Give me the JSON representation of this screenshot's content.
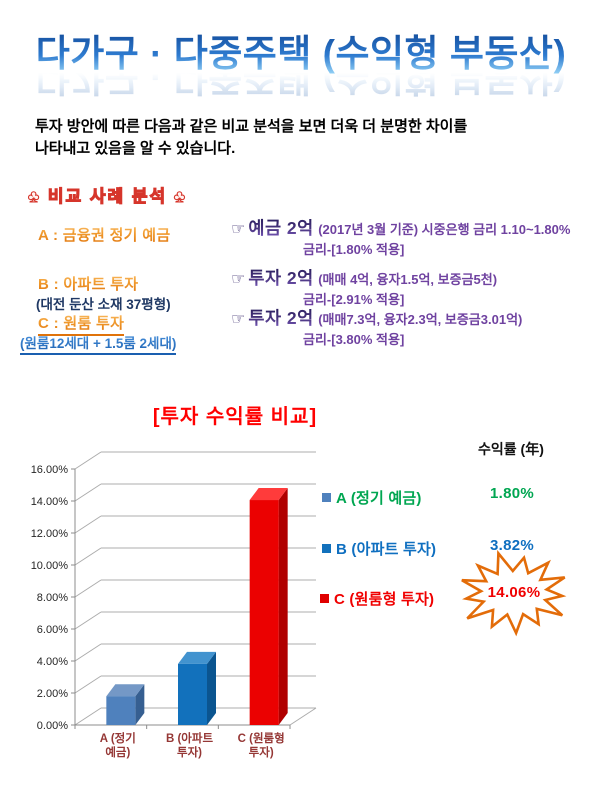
{
  "title": {
    "text": "다가구 · 다중주택 (수익형 부동산)"
  },
  "intro": {
    "line1": "투자 방안에 따른 다음과 같은 비교 분석을 보면 더욱 더 분명한 차이를",
    "line2": "나타내고 있음을 알 수 있습니다."
  },
  "section_header": {
    "text": "♣ 비교 사례 분석 ♣",
    "color": "#D6352B"
  },
  "cases": [
    {
      "label": "A : 금융권 정기 예금",
      "sublabel": "",
      "pointer": "☞",
      "amount": "예금 2억",
      "detail": "(2017년 3월 기준) 시중은행 금리 1.10~1.80%",
      "rate": "금리-[1.80% 적용]"
    },
    {
      "label": "B : 아파트 투자",
      "sublabel": "(대전 둔산 소재 37평형)",
      "pointer": "☞",
      "amount": "투자 2억",
      "detail": "(매매 4억, 융자1.5억, 보증금5천)",
      "rate": "금리-[2.91% 적용]"
    },
    {
      "label": "C : 원룸 투자",
      "sublabel": "(원룸12세대 + 1.5룸 2세대)",
      "pointer": "☞",
      "amount": "투자 2억",
      "detail": "(매매7.3억, 융자2.3억, 보증금3.01억)",
      "rate": "금리-[3.80% 적용]"
    }
  ],
  "chart": {
    "title": "[투자 수익률 비교]",
    "title_color": "#FF0000",
    "legend_header": "수익률 (年)",
    "legend_items": [
      {
        "label": "A (정기 예금)",
        "value": "1.80%",
        "text_color": "#00A651",
        "marker_color": "#4F81BD"
      },
      {
        "label": "B (아파트 투자)",
        "value": "3.82%",
        "text_color": "#0F6FC0",
        "marker_color": "#1271BC"
      },
      {
        "label": "C (원룸형 투자)",
        "value": "14.06%",
        "text_color": "#F00000",
        "marker_color": "#E00000"
      }
    ],
    "starburst_color": "#E36C09"
  },
  "chart_data": {
    "type": "bar",
    "style": "3d-column",
    "title": "[투자 수익률 비교]",
    "categories": [
      "A (정기 예금)",
      "B (아파트 투자)",
      "C (원룸형 투자)"
    ],
    "categories_wrapped": [
      [
        "A (정기",
        "예금)"
      ],
      [
        "B (아파트",
        "투자)"
      ],
      [
        "C (원룸형",
        "투자)"
      ]
    ],
    "values": [
      1.8,
      3.82,
      14.06
    ],
    "xlabel": "",
    "ylabel": "",
    "ylim": [
      0,
      16
    ],
    "ytick_step": 2,
    "ytick_suffix": "%",
    "grid": true,
    "legend_position": "right",
    "axis_label_color": "#262626",
    "category_label_color": "#953735",
    "gridline_color": "#ACACAC",
    "axis_line_color": "#8C8C8C",
    "bar_colors": [
      {
        "front": "#4F81BD",
        "top": "#7498C6",
        "side": "#365F91"
      },
      {
        "front": "#1271BC",
        "top": "#4293CF",
        "side": "#0B5590"
      },
      {
        "front": "#EB0101",
        "top": "#FF3B3B",
        "side": "#B00000"
      }
    ]
  }
}
